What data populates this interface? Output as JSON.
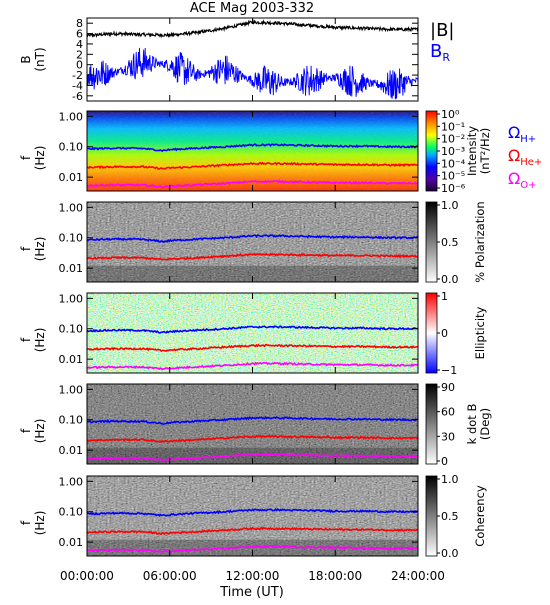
{
  "title": "ACE Mag 2003-332",
  "xaxis": {
    "label": "Time (UT)",
    "ticks": [
      "00:00:00",
      "06:00:00",
      "12:00:00",
      "18:00:00",
      "24:00:00"
    ],
    "tick_hours": [
      0,
      6,
      12,
      18,
      24
    ]
  },
  "legend_top": {
    "b_mag": "|B|",
    "b_r": "B",
    "b_r_sub": "R"
  },
  "legend_right": [
    {
      "symbol": "Ω",
      "sub": "H+",
      "color": "#0000ff"
    },
    {
      "symbol": "Ω",
      "sub": "He+",
      "color": "#ff0000"
    },
    {
      "symbol": "Ω",
      "sub": "O+",
      "color": "#ff00ff"
    }
  ],
  "colors": {
    "b_mag": "#000000",
    "b_r": "#0000ff",
    "h_plus": "#0000ff",
    "he_plus": "#ff0000",
    "o_plus": "#ff00ff"
  },
  "chart_data": [
    {
      "type": "line",
      "id": "field",
      "ylabel": "B",
      "yunit": "(nT)",
      "ylim": [
        -7,
        9
      ],
      "yticks": [
        "8",
        "6",
        "4",
        "2",
        "0",
        "-2",
        "-4",
        "-6"
      ],
      "ytick_values": [
        8,
        6,
        4,
        2,
        0,
        -2,
        -4,
        -6
      ],
      "series": [
        {
          "name": "|B|",
          "x_hours": [
            0,
            2,
            4,
            6,
            8,
            10,
            12,
            14,
            16,
            18,
            20,
            22,
            24
          ],
          "values": [
            5.6,
            6.0,
            5.8,
            5.7,
            6.2,
            7.0,
            8.2,
            8.0,
            7.6,
            7.2,
            7.0,
            6.8,
            6.8
          ]
        },
        {
          "name": "B_R",
          "x_hours": [
            0,
            2,
            4,
            6,
            8,
            10,
            12,
            14,
            16,
            18,
            20,
            22,
            24
          ],
          "values": [
            -2.0,
            -1.5,
            0.5,
            0.0,
            -2.0,
            -1.0,
            -3.0,
            -3.5,
            -3.0,
            -2.5,
            -3.5,
            -4.0,
            -3.0
          ]
        }
      ]
    },
    {
      "type": "heatmap",
      "id": "intensity",
      "ylabel": "f",
      "yunit": "(Hz)",
      "yscale": "log",
      "yticks": [
        "1.00",
        "0.10",
        "0.01"
      ],
      "ytick_values": [
        1.0,
        0.1,
        0.01
      ],
      "colorbar": {
        "type": "rainbow",
        "label": "Intensity",
        "unit": "(nT²/Hz)",
        "ticks": [
          "10⁰",
          "10⁻¹",
          "10⁻²",
          "10⁻³",
          "10⁻⁴",
          "10⁻⁵",
          "10⁻⁶"
        ]
      }
    },
    {
      "type": "heatmap",
      "id": "polarization",
      "ylabel": "f",
      "yunit": "(Hz)",
      "yscale": "log",
      "yticks": [
        "1.00",
        "0.10",
        "0.01"
      ],
      "ytick_values": [
        1.0,
        0.1,
        0.01
      ],
      "colorbar": {
        "type": "gray",
        "label": "% Polarization",
        "unit": "",
        "ticks": [
          "1.0",
          "0.5",
          "0.0"
        ]
      }
    },
    {
      "type": "heatmap",
      "id": "ellipticity",
      "ylabel": "f",
      "yunit": "(Hz)",
      "yscale": "log",
      "yticks": [
        "1.00",
        "0.10",
        "0.01"
      ],
      "ytick_values": [
        1.0,
        0.1,
        0.01
      ],
      "colorbar": {
        "type": "bluewhitered",
        "label": "Ellipticity",
        "unit": "",
        "ticks": [
          "1",
          "0",
          "−1"
        ]
      }
    },
    {
      "type": "heatmap",
      "id": "kdotb",
      "ylabel": "f",
      "yunit": "(Hz)",
      "yscale": "log",
      "yticks": [
        "1.00",
        "0.10",
        "0.01"
      ],
      "ytick_values": [
        1.0,
        0.1,
        0.01
      ],
      "colorbar": {
        "type": "gray",
        "label": "k dot B",
        "unit": "(Deg)",
        "ticks": [
          "90",
          "60",
          "30",
          "0"
        ]
      }
    },
    {
      "type": "heatmap",
      "id": "coherency",
      "ylabel": "f",
      "yunit": "(Hz)",
      "yscale": "log",
      "yticks": [
        "1.00",
        "0.10",
        "0.01"
      ],
      "ytick_values": [
        1.0,
        0.1,
        0.01
      ],
      "colorbar": {
        "type": "gray",
        "label": "Coherency",
        "unit": "",
        "ticks": [
          "1.0",
          "0.5",
          "0.0"
        ]
      }
    }
  ],
  "gyro_lines": {
    "x_hours": [
      0,
      2,
      4,
      5.5,
      6,
      8,
      10,
      12,
      14,
      16,
      18,
      20,
      22,
      24
    ],
    "h_plus_hz": [
      0.085,
      0.09,
      0.088,
      0.075,
      0.08,
      0.09,
      0.1,
      0.115,
      0.115,
      0.11,
      0.105,
      0.105,
      0.1,
      0.1
    ],
    "he_plus_hz": [
      0.021,
      0.022,
      0.022,
      0.019,
      0.02,
      0.022,
      0.025,
      0.028,
      0.028,
      0.027,
      0.026,
      0.026,
      0.025,
      0.025
    ],
    "o_plus_hz": [
      0.0053,
      0.0055,
      0.0055,
      0.0048,
      0.005,
      0.0056,
      0.0062,
      0.0072,
      0.0072,
      0.0068,
      0.0066,
      0.0065,
      0.0063,
      0.0063
    ]
  }
}
